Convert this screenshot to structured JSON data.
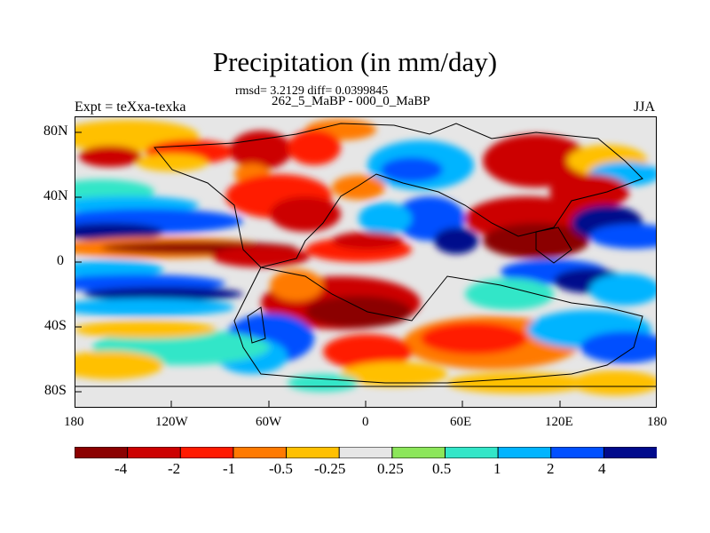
{
  "title": "Precipitation (in mm/day)",
  "stats_line": "rmsd= 3.2129 diff= 0.0399845",
  "period_line": "262_5_MaBP - 000_0_MaBP",
  "experiment_label": "Expt = teXxa-texka",
  "season_label": "JJA",
  "map": {
    "projection": "cylindrical-equidistant",
    "lat_range": [
      -90,
      90
    ],
    "lon_range": [
      -180,
      180
    ],
    "lat_ticks": [
      "80N",
      "40N",
      "0",
      "40S",
      "80S"
    ],
    "lon_ticks": [
      "180",
      "120W",
      "60W",
      "0",
      "60E",
      "120E",
      "180"
    ],
    "overlay": "paleo-continent outlines (black)"
  },
  "colorbar": {
    "levels": [
      "-4",
      "-2",
      "-1",
      "-0.5",
      "-0.25",
      "0.25",
      "0.5",
      "1",
      "2",
      "4"
    ],
    "colors": [
      "#8b0000",
      "#cc0000",
      "#ff1a00",
      "#ff7a00",
      "#ffc000",
      "#e6e6e6",
      "#8ce65a",
      "#33e6c8",
      "#00b4ff",
      "#0050ff",
      "#000a8c"
    ]
  }
}
